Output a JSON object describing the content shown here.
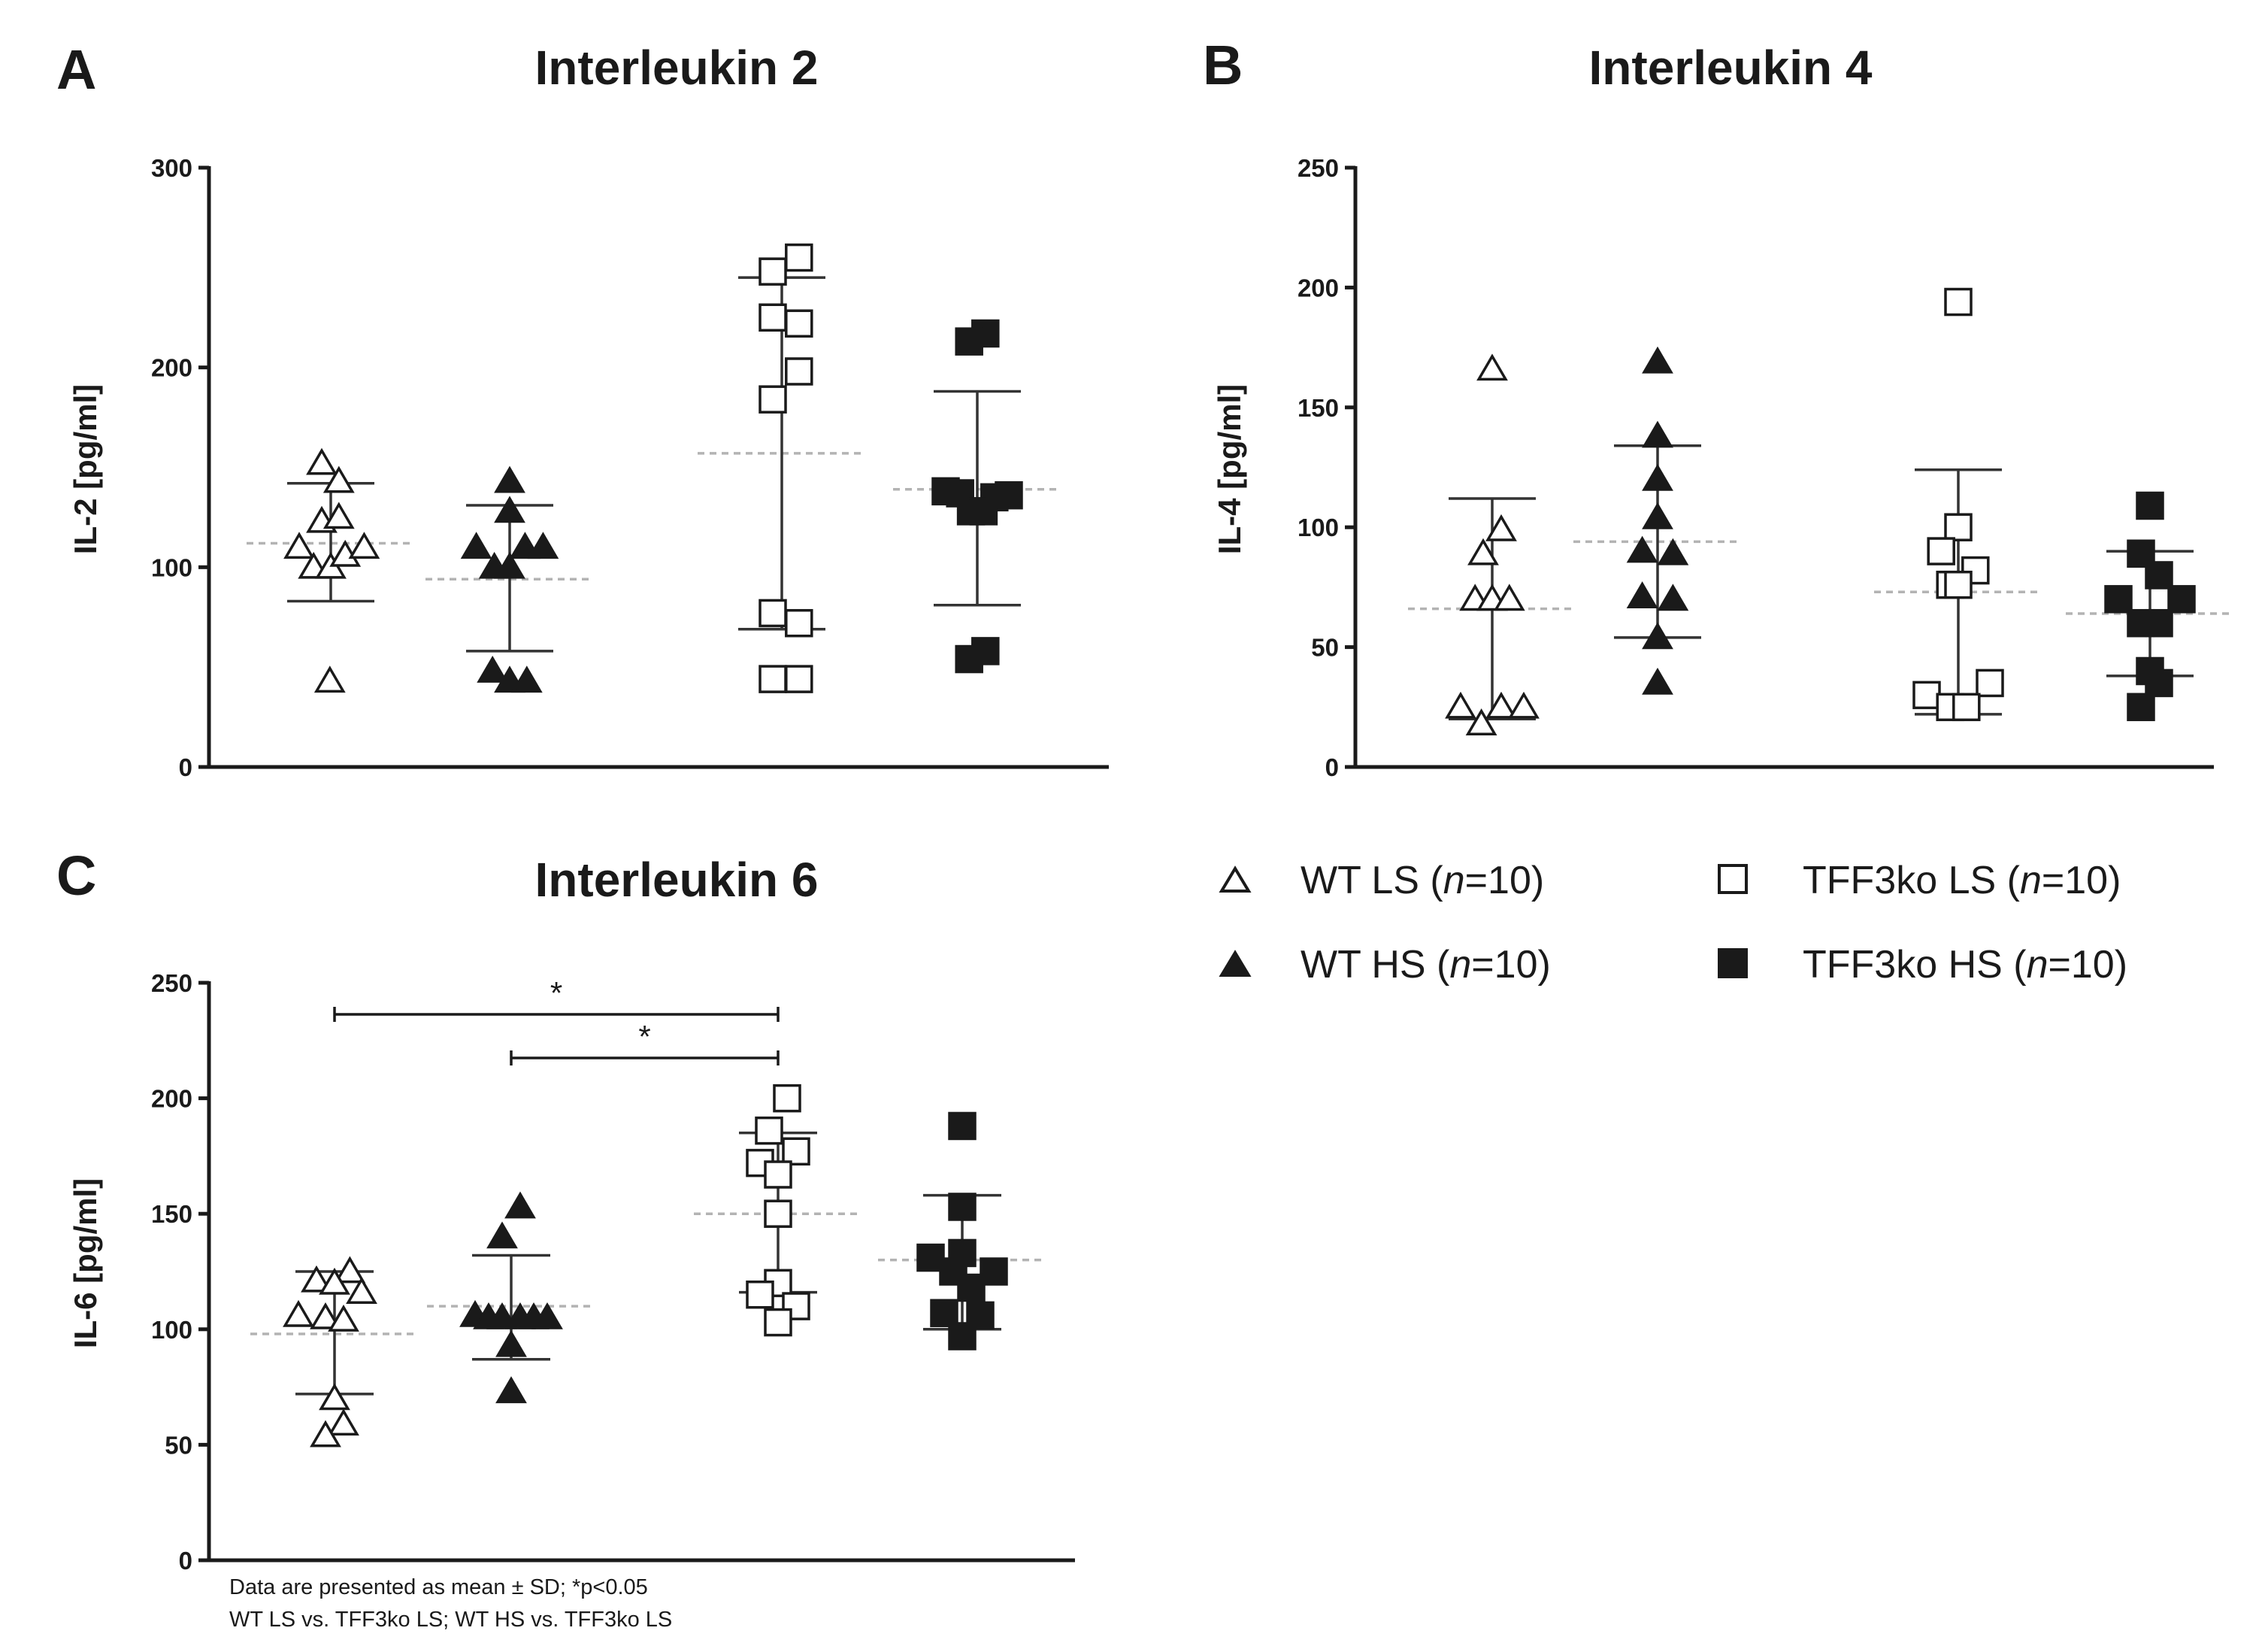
{
  "legend": {
    "items": [
      {
        "label": "WT LS",
        "n": "10",
        "marker": "triangle-open"
      },
      {
        "label": "WT HS",
        "n": "10",
        "marker": "triangle-filled"
      },
      {
        "label": "TFF3ko LS",
        "n": "10",
        "marker": "square-open"
      },
      {
        "label": "TFF3ko HS",
        "n": "10",
        "marker": "square-filled"
      }
    ],
    "n_prefix": " (",
    "n_symbol": "n",
    "n_suffix": ")"
  },
  "footnote": {
    "line1": "Data are presented as mean ± SD; *p<0.05",
    "line2": "WT LS vs. TFF3ko LS; WT HS vs. TFF3ko LS"
  },
  "colors": {
    "ink": "#1a1a1a",
    "mean_line": "#b3b3b3",
    "error_bar": "#333333"
  },
  "chart_data": [
    {
      "panel": "A",
      "type": "scatter",
      "title": "Interleukin 2",
      "ylabel": "IL-2 [pg/ml]",
      "ylim": [
        0,
        300
      ],
      "yticks": [
        0,
        100,
        200,
        300
      ],
      "categories": [
        "WT LS",
        "WT HS",
        "TFF3ko LS",
        "TFF3ko HS"
      ],
      "series": [
        {
          "name": "WT LS",
          "marker": "triangle-open",
          "mean": 112,
          "sd_low": 83,
          "sd_high": 142,
          "values": [
            152,
            143,
            123,
            125,
            110,
            100,
            100,
            106,
            110,
            43
          ],
          "jitter": [
            -0.1,
            0.09,
            -0.1,
            0.09,
            -0.35,
            -0.19,
            0.0,
            0.16,
            0.37,
            -0.01
          ]
        },
        {
          "name": "WT HS",
          "marker": "triangle-filled",
          "mean": 94,
          "sd_low": 58,
          "sd_high": 131,
          "values": [
            143,
            128,
            110,
            100,
            100,
            110,
            110,
            48,
            43,
            43
          ],
          "jitter": [
            0.0,
            0.0,
            -0.37,
            -0.17,
            0.0,
            0.17,
            0.37,
            -0.19,
            0.0,
            0.19
          ]
        },
        {
          "name": "TFF3ko LS",
          "marker": "square-open",
          "mean": 157,
          "sd_low": 69,
          "sd_high": 245,
          "values": [
            255,
            248,
            225,
            222,
            198,
            184,
            77,
            72,
            44,
            44
          ],
          "jitter": [
            0.19,
            -0.1,
            -0.1,
            0.19,
            0.19,
            -0.1,
            -0.1,
            0.19,
            -0.1,
            0.19
          ]
        },
        {
          "name": "TFF3ko HS",
          "marker": "square-filled",
          "mean": 139,
          "sd_low": 81,
          "sd_high": 188,
          "values": [
            217,
            213,
            138,
            137,
            136,
            135,
            128,
            128,
            58,
            54
          ],
          "jitter": [
            0.09,
            -0.09,
            -0.35,
            -0.19,
            0.35,
            0.19,
            -0.07,
            0.07,
            0.09,
            -0.09
          ]
        }
      ]
    },
    {
      "panel": "B",
      "type": "scatter",
      "title": "Interleukin 4",
      "ylabel": "IL-4 [pg/ml]",
      "ylim": [
        0,
        250
      ],
      "yticks": [
        0,
        50,
        100,
        150,
        200,
        250
      ],
      "categories": [
        "WT LS",
        "WT HS",
        "TFF3ko LS",
        "TFF3ko HS"
      ],
      "series": [
        {
          "name": "WT LS",
          "marker": "triangle-open",
          "mean": 66,
          "sd_low": 20,
          "sd_high": 112,
          "values": [
            166,
            99,
            89,
            70,
            70,
            70,
            25,
            25,
            25,
            18
          ],
          "jitter": [
            0.0,
            0.1,
            -0.1,
            -0.19,
            0.0,
            0.19,
            -0.35,
            0.1,
            0.35,
            -0.12
          ]
        },
        {
          "name": "WT HS",
          "marker": "triangle-filled",
          "mean": 94,
          "sd_low": 54,
          "sd_high": 134,
          "values": [
            169,
            138,
            120,
            104,
            90,
            89,
            71,
            70,
            54,
            35
          ],
          "jitter": [
            0.0,
            0.0,
            0.0,
            0.0,
            -0.17,
            0.17,
            -0.17,
            0.17,
            0.0,
            0.0
          ]
        },
        {
          "name": "TFF3ko LS",
          "marker": "square-open",
          "mean": 73,
          "sd_low": 22,
          "sd_high": 124,
          "values": [
            194,
            100,
            90,
            82,
            76,
            76,
            35,
            30,
            25,
            25
          ],
          "jitter": [
            0.0,
            0.0,
            -0.19,
            0.19,
            -0.09,
            0.0,
            0.35,
            -0.35,
            -0.09,
            0.09
          ]
        },
        {
          "name": "TFF3ko HS",
          "marker": "square-filled",
          "mean": 64,
          "sd_low": 38,
          "sd_high": 90,
          "values": [
            109,
            89,
            80,
            70,
            70,
            60,
            60,
            40,
            35,
            25
          ],
          "jitter": [
            0.0,
            -0.1,
            0.1,
            -0.35,
            0.35,
            -0.1,
            0.1,
            0.0,
            0.1,
            -0.1
          ]
        }
      ]
    },
    {
      "panel": "C",
      "type": "scatter",
      "title": "Interleukin 6",
      "ylabel": "IL-6 [pg/ml]",
      "ylim": [
        0,
        250
      ],
      "yticks": [
        0,
        50,
        100,
        150,
        200,
        250
      ],
      "categories": [
        "WT LS",
        "WT HS",
        "TFF3ko LS",
        "TFF3ko HS"
      ],
      "significance": [
        {
          "from": "WT LS",
          "to": "TFF3ko LS",
          "label": "*"
        },
        {
          "from": "WT HS",
          "to": "TFF3ko LS",
          "label": "*"
        }
      ],
      "series": [
        {
          "name": "WT LS",
          "marker": "triangle-open",
          "mean": 98,
          "sd_low": 72,
          "sd_high": 125,
          "values": [
            125,
            121,
            120,
            116,
            106,
            105,
            104,
            70,
            59,
            54
          ],
          "jitter": [
            0.17,
            -0.2,
            0.0,
            0.3,
            -0.4,
            -0.1,
            0.1,
            0.0,
            0.1,
            -0.1
          ]
        },
        {
          "name": "WT HS",
          "marker": "triangle-filled",
          "mean": 110,
          "sd_low": 87,
          "sd_high": 132,
          "values": [
            153,
            140,
            106,
            105,
            105,
            105,
            105,
            105,
            93,
            73
          ],
          "jitter": [
            0.1,
            -0.1,
            -0.4,
            -0.25,
            -0.1,
            0.1,
            0.25,
            0.4,
            0.0,
            0.0
          ]
        },
        {
          "name": "TFF3ko LS",
          "marker": "square-open",
          "mean": 150,
          "sd_low": 116,
          "sd_high": 185,
          "values": [
            200,
            186,
            177,
            172,
            167,
            150,
            120,
            115,
            110,
            103
          ],
          "jitter": [
            0.1,
            -0.1,
            0.2,
            -0.2,
            0.0,
            0.0,
            0.0,
            -0.2,
            0.2,
            0.0
          ]
        },
        {
          "name": "TFF3ko HS",
          "marker": "square-filled",
          "mean": 130,
          "sd_low": 100,
          "sd_high": 158,
          "values": [
            188,
            153,
            133,
            131,
            125,
            125,
            118,
            107,
            106,
            97
          ],
          "jitter": [
            0.0,
            0.0,
            0.0,
            -0.35,
            -0.1,
            0.35,
            0.1,
            -0.2,
            0.2,
            0.0
          ]
        }
      ]
    }
  ]
}
